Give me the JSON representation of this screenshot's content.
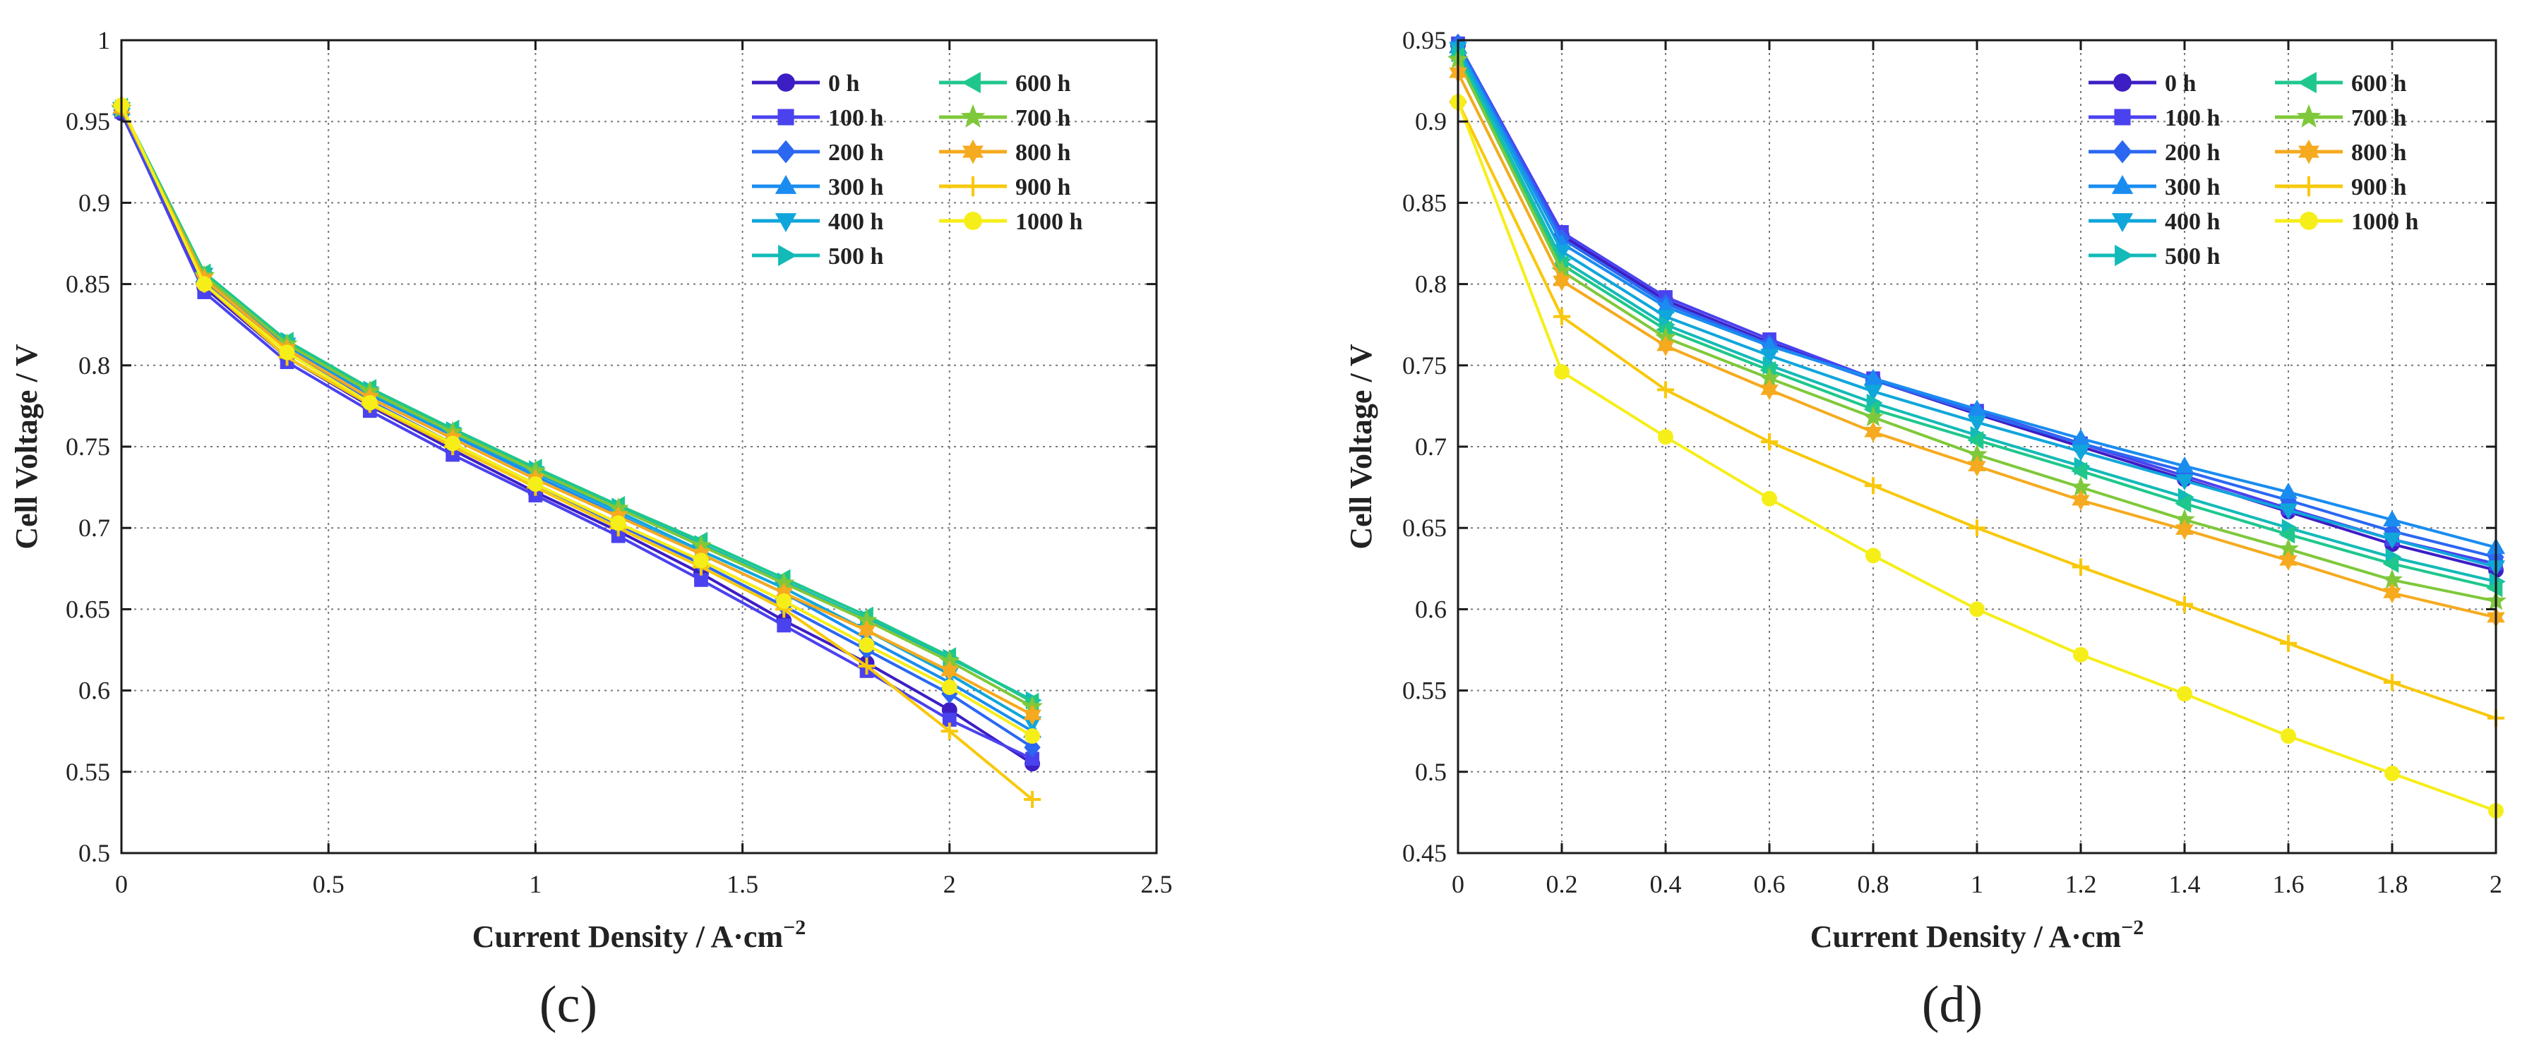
{
  "chart_data": [
    {
      "type": "line",
      "panel_label": "(c)",
      "xlabel": "Current Density / A·cm",
      "xlabel_sup": "−2",
      "ylabel": "Cell Voltage / V",
      "xlim": [
        0,
        2.5
      ],
      "ylim": [
        0.5,
        1
      ],
      "xticks": [
        0,
        0.5,
        1,
        1.5,
        2,
        2.5
      ],
      "xtick_labels": [
        "0",
        "0.5",
        "1",
        "1.5",
        "2",
        "2.5"
      ],
      "yticks": [
        0.5,
        0.55,
        0.6,
        0.65,
        0.7,
        0.75,
        0.8,
        0.85,
        0.9,
        0.95,
        1
      ],
      "ytick_labels": [
        "0.5",
        "0.55",
        "0.6",
        "0.65",
        "0.7",
        "0.75",
        "0.8",
        "0.85",
        "0.9",
        "0.95",
        "1"
      ],
      "grid": true,
      "legend_position": "top-right",
      "x": [
        0,
        0.2,
        0.4,
        0.6,
        0.8,
        1.0,
        1.2,
        1.4,
        1.6,
        1.8,
        2.0,
        2.2
      ],
      "series": [
        {
          "name": "0 h",
          "values": [
            0.955,
            0.848,
            0.805,
            0.775,
            0.748,
            0.722,
            0.698,
            0.672,
            0.643,
            0.617,
            0.588,
            0.555
          ]
        },
        {
          "name": "100 h",
          "values": [
            0.956,
            0.845,
            0.802,
            0.772,
            0.745,
            0.72,
            0.695,
            0.668,
            0.64,
            0.612,
            0.582,
            0.558
          ]
        },
        {
          "name": "200 h",
          "values": [
            0.957,
            0.852,
            0.808,
            0.778,
            0.752,
            0.727,
            0.702,
            0.678,
            0.652,
            0.625,
            0.598,
            0.565
          ]
        },
        {
          "name": "300 h",
          "values": [
            0.958,
            0.855,
            0.812,
            0.782,
            0.757,
            0.732,
            0.708,
            0.684,
            0.66,
            0.632,
            0.605,
            0.575
          ]
        },
        {
          "name": "400 h",
          "values": [
            0.958,
            0.856,
            0.813,
            0.783,
            0.758,
            0.734,
            0.71,
            0.686,
            0.663,
            0.637,
            0.61,
            0.58
          ]
        },
        {
          "name": "500 h",
          "values": [
            0.958,
            0.857,
            0.815,
            0.785,
            0.76,
            0.736,
            0.713,
            0.69,
            0.667,
            0.644,
            0.62,
            0.594
          ]
        },
        {
          "name": "600 h",
          "values": [
            0.959,
            0.857,
            0.815,
            0.786,
            0.761,
            0.737,
            0.714,
            0.692,
            0.669,
            0.646,
            0.621,
            0.593
          ]
        },
        {
          "name": "700 h",
          "values": [
            0.958,
            0.855,
            0.813,
            0.784,
            0.759,
            0.735,
            0.712,
            0.689,
            0.666,
            0.643,
            0.618,
            0.59
          ]
        },
        {
          "name": "800 h",
          "values": [
            0.958,
            0.853,
            0.81,
            0.78,
            0.755,
            0.73,
            0.707,
            0.684,
            0.66,
            0.637,
            0.612,
            0.585
          ]
        },
        {
          "name": "900 h",
          "values": [
            0.96,
            0.85,
            0.805,
            0.776,
            0.75,
            0.725,
            0.7,
            0.676,
            0.65,
            0.615,
            0.575,
            0.533
          ]
        },
        {
          "name": "1000 h",
          "values": [
            0.96,
            0.85,
            0.808,
            0.777,
            0.752,
            0.727,
            0.703,
            0.68,
            0.655,
            0.628,
            0.602,
            0.572
          ]
        }
      ]
    },
    {
      "type": "line",
      "panel_label": "(d)",
      "xlabel": "Current Density / A·cm",
      "xlabel_sup": "−2",
      "ylabel": "Cell Voltage / V",
      "xlim": [
        0,
        2
      ],
      "ylim": [
        0.45,
        0.95
      ],
      "xticks": [
        0,
        0.2,
        0.4,
        0.6,
        0.8,
        1,
        1.2,
        1.4,
        1.6,
        1.8,
        2
      ],
      "xtick_labels": [
        "0",
        "0.2",
        "0.4",
        "0.6",
        "0.8",
        "1",
        "1.2",
        "1.4",
        "1.6",
        "1.8",
        "2"
      ],
      "yticks": [
        0.45,
        0.5,
        0.55,
        0.6,
        0.65,
        0.7,
        0.75,
        0.8,
        0.85,
        0.9,
        0.95
      ],
      "ytick_labels": [
        "0.45",
        "0.5",
        "0.55",
        "0.6",
        "0.65",
        "0.7",
        "0.75",
        "0.8",
        "0.85",
        "0.9",
        "0.95"
      ],
      "grid": true,
      "legend_position": "top-right",
      "x": [
        0,
        0.2,
        0.4,
        0.6,
        0.8,
        1.0,
        1.2,
        1.4,
        1.6,
        1.8,
        2.0
      ],
      "series": [
        {
          "name": "0 h",
          "values": [
            0.947,
            0.83,
            0.79,
            0.764,
            0.741,
            0.72,
            0.7,
            0.68,
            0.66,
            0.64,
            0.624
          ]
        },
        {
          "name": "100 h",
          "values": [
            0.948,
            0.832,
            0.792,
            0.766,
            0.742,
            0.722,
            0.702,
            0.682,
            0.662,
            0.643,
            0.628
          ]
        },
        {
          "name": "200 h",
          "values": [
            0.948,
            0.828,
            0.788,
            0.763,
            0.741,
            0.721,
            0.702,
            0.685,
            0.667,
            0.648,
            0.632
          ]
        },
        {
          "name": "300 h",
          "values": [
            0.946,
            0.825,
            0.786,
            0.762,
            0.742,
            0.723,
            0.705,
            0.688,
            0.672,
            0.655,
            0.638
          ]
        },
        {
          "name": "400 h",
          "values": [
            0.945,
            0.82,
            0.78,
            0.756,
            0.734,
            0.715,
            0.697,
            0.679,
            0.661,
            0.643,
            0.626
          ]
        },
        {
          "name": "500 h",
          "values": [
            0.942,
            0.815,
            0.775,
            0.75,
            0.727,
            0.707,
            0.688,
            0.669,
            0.65,
            0.632,
            0.617
          ]
        },
        {
          "name": "600 h",
          "values": [
            0.94,
            0.812,
            0.772,
            0.747,
            0.723,
            0.704,
            0.685,
            0.665,
            0.646,
            0.628,
            0.613
          ]
        },
        {
          "name": "700 h",
          "values": [
            0.938,
            0.808,
            0.767,
            0.742,
            0.718,
            0.695,
            0.675,
            0.655,
            0.637,
            0.618,
            0.605
          ]
        },
        {
          "name": "800 h",
          "values": [
            0.93,
            0.802,
            0.762,
            0.735,
            0.709,
            0.688,
            0.667,
            0.649,
            0.63,
            0.61,
            0.595
          ]
        },
        {
          "name": "900 h",
          "values": [
            0.912,
            0.78,
            0.735,
            0.703,
            0.676,
            0.65,
            0.626,
            0.603,
            0.579,
            0.555,
            0.533
          ]
        },
        {
          "name": "1000 h",
          "values": [
            0.912,
            0.746,
            0.706,
            0.668,
            0.633,
            0.6,
            0.572,
            0.548,
            0.522,
            0.499,
            0.476
          ]
        }
      ]
    }
  ],
  "series_style": [
    {
      "color": "#3d1ec4",
      "marker": "circle"
    },
    {
      "color": "#4a42ee",
      "marker": "square"
    },
    {
      "color": "#2c67f2",
      "marker": "diamond"
    },
    {
      "color": "#1a8cf0",
      "marker": "triangle-up"
    },
    {
      "color": "#10a6db",
      "marker": "triangle-down"
    },
    {
      "color": "#13bab8",
      "marker": "triangle-right"
    },
    {
      "color": "#1fc78c",
      "marker": "triangle-left"
    },
    {
      "color": "#7fc83b",
      "marker": "star"
    },
    {
      "color": "#f5aa1f",
      "marker": "hexagram"
    },
    {
      "color": "#f8c80b",
      "marker": "plus"
    },
    {
      "color": "#f6ee18",
      "marker": "circle"
    }
  ]
}
